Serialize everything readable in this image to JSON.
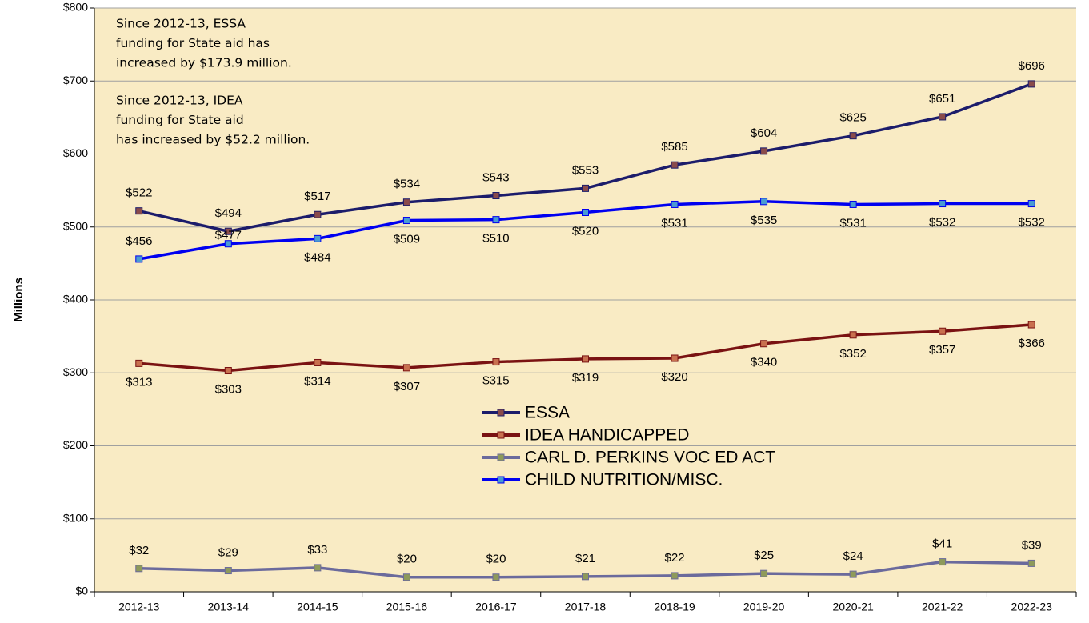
{
  "chart_data": {
    "type": "line",
    "y_axis_label": "Millions",
    "categories": [
      "2012-13",
      "2013-14",
      "2014-15",
      "2015-16",
      "2016-17",
      "2017-18",
      "2018-19",
      "2019-20",
      "2020-21",
      "2021-22",
      "2022-23"
    ],
    "series": [
      {
        "name": "ESSA",
        "color": "#1c1c6b",
        "marker_color": "#8a4b4b",
        "values": [
          522,
          494,
          517,
          534,
          543,
          553,
          585,
          604,
          625,
          651,
          696
        ],
        "value_labels": [
          "$522",
          "$494",
          "$517",
          "$534",
          "$543",
          "$553",
          "$585",
          "$604",
          "$625",
          "$651",
          "$696"
        ]
      },
      {
        "name": "IDEA HANDICAPPED",
        "color": "#7a1212",
        "marker_color": "#c8704f",
        "values": [
          313,
          303,
          314,
          307,
          315,
          319,
          320,
          340,
          352,
          357,
          366
        ],
        "value_labels": [
          "$313",
          "$303",
          "$314",
          "$307",
          "$315",
          "$319",
          "$320",
          "$340",
          "$352",
          "$357",
          "$366"
        ]
      },
      {
        "name": "CARL D. PERKINS VOC ED ACT",
        "color": "#6b6a9c",
        "marker_color": "#8e9a5a",
        "values": [
          32,
          29,
          33,
          20,
          20,
          21,
          22,
          25,
          24,
          41,
          39
        ],
        "value_labels": [
          "$32",
          "$29",
          "$33",
          "$20",
          "$20",
          "$21",
          "$22",
          "$25",
          "$24",
          "$41",
          "$39"
        ]
      },
      {
        "name": "CHILD NUTRITION/MISC.",
        "color": "#0000f0",
        "marker_color": "#4a9bd2",
        "values": [
          456,
          477,
          484,
          509,
          510,
          520,
          531,
          535,
          531,
          532,
          532
        ],
        "value_labels": [
          "$456",
          "$477",
          "$484",
          "$509",
          "$510",
          "$520",
          "$531",
          "$535",
          "$531",
          "$532",
          "$532"
        ]
      }
    ],
    "ylim": [
      0,
      800
    ],
    "yticks": [
      {
        "value": 0,
        "label": "$0"
      },
      {
        "value": 100,
        "label": "$100"
      },
      {
        "value": 200,
        "label": "$200"
      },
      {
        "value": 300,
        "label": "$300"
      },
      {
        "value": 400,
        "label": "$400"
      },
      {
        "value": 500,
        "label": "$500"
      },
      {
        "value": 600,
        "label": "$600"
      },
      {
        "value": 700,
        "label": "$700"
      },
      {
        "value": 800,
        "label": "$800"
      }
    ],
    "grid": true,
    "background": "#f9ebc4",
    "annotations": [
      [
        "Since 2012-13, ESSA",
        "funding for State aid has",
        "increased by  $173.9 million."
      ],
      [
        "Since 2012-13, IDEA",
        "funding for State aid",
        "has increased by $52.2 million."
      ]
    ]
  }
}
